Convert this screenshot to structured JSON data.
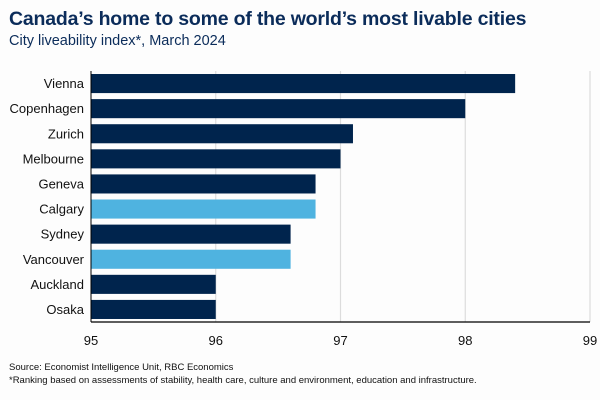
{
  "chart_data": {
    "type": "bar",
    "orientation": "horizontal",
    "title": "Canada’s home to some of the world’s most livable cities",
    "subtitle": "City liveability index*, March 2024",
    "categories": [
      "Vienna",
      "Copenhagen",
      "Zurich",
      "Melbourne",
      "Geneva",
      "Calgary",
      "Sydney",
      "Vancouver",
      "Auckland",
      "Osaka"
    ],
    "values": [
      98.4,
      98.0,
      97.1,
      97.0,
      96.8,
      96.8,
      96.6,
      96.6,
      96.0,
      96.0
    ],
    "highlight": [
      false,
      false,
      false,
      false,
      false,
      true,
      false,
      true,
      false,
      false
    ],
    "xlabel": "",
    "ylabel": "",
    "xlim": [
      95,
      99
    ],
    "xticks": [
      95,
      96,
      97,
      98,
      99
    ],
    "grid": true,
    "legend": "none",
    "colors": {
      "default": "#00244d",
      "highlight": "#4fb3e0",
      "grid": "#dcdcdc",
      "axis": "#000000"
    }
  },
  "footer": {
    "source": "Source: Economist Intelligence Unit, RBC Economics",
    "note": "*Ranking based on assessments of stability, health care, culture and environment, education and infrastructure."
  }
}
